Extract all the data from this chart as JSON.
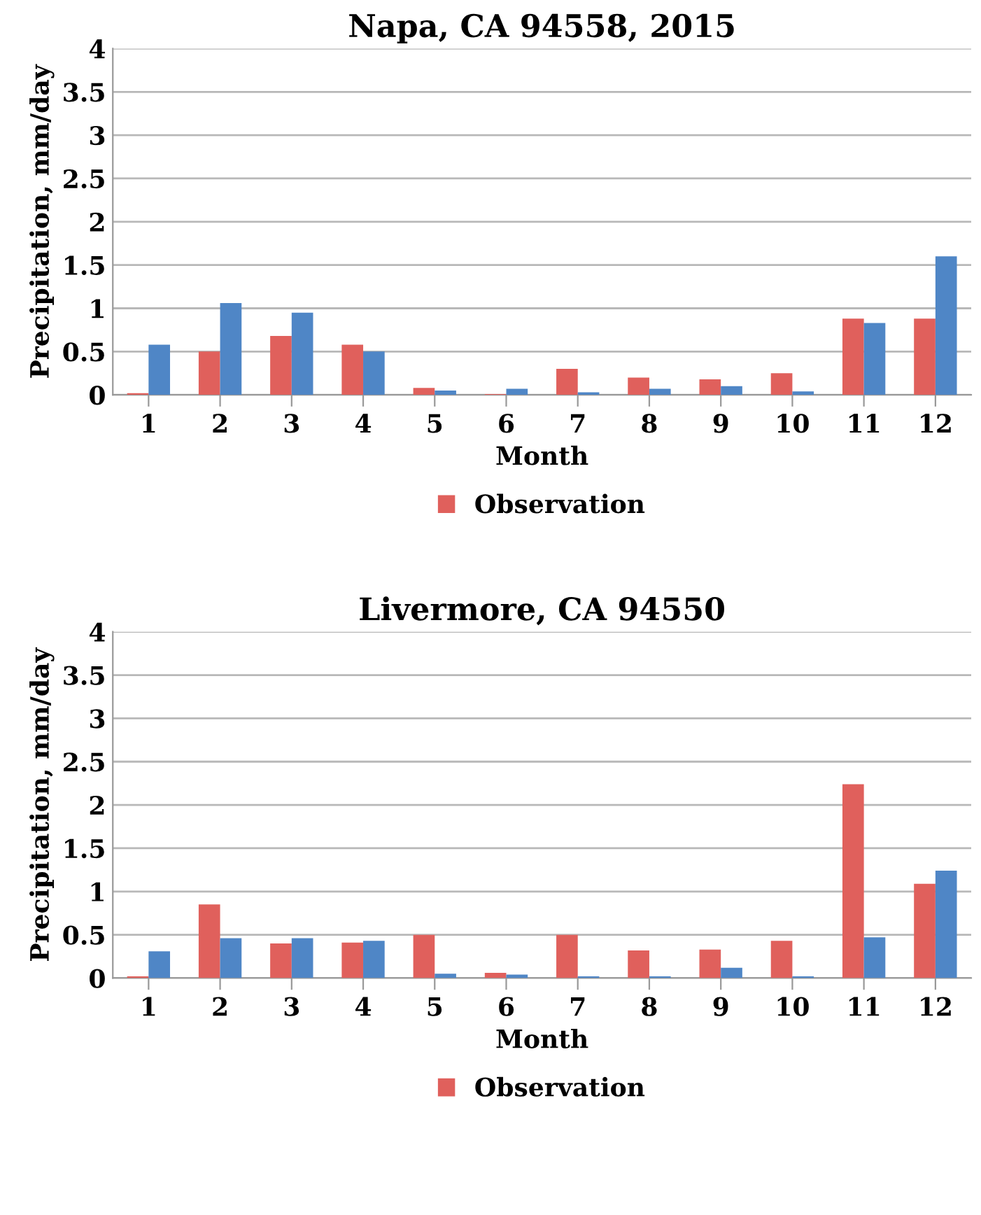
{
  "chart_data": [
    {
      "type": "bar",
      "title": "Napa, CA 94558, 2015",
      "xlabel": "Month",
      "ylabel": "Precipitation, mm/day",
      "categories": [
        "1",
        "2",
        "3",
        "4",
        "5",
        "6",
        "7",
        "8",
        "9",
        "10",
        "11",
        "12"
      ],
      "series": [
        {
          "name": "Observation",
          "color": "#e0605c",
          "values": [
            0.02,
            0.5,
            0.68,
            0.58,
            0.08,
            0.01,
            0.3,
            0.2,
            0.18,
            0.25,
            0.88,
            0.88
          ]
        },
        {
          "color": "#4f86c6",
          "values": [
            0.58,
            1.06,
            0.95,
            0.5,
            0.05,
            0.07,
            0.03,
            0.07,
            0.1,
            0.04,
            0.83,
            1.6
          ]
        }
      ],
      "ylim": [
        0,
        4
      ],
      "yticks": [
        0,
        0.5,
        1,
        1.5,
        2,
        2.5,
        3,
        3.5,
        4
      ],
      "grid": "y",
      "legend": "bottom"
    },
    {
      "type": "bar",
      "title": "Livermore, CA 94550",
      "xlabel": "Month",
      "ylabel": "Precipitation, mm/day",
      "categories": [
        "1",
        "2",
        "3",
        "4",
        "5",
        "6",
        "7",
        "8",
        "9",
        "10",
        "11",
        "12"
      ],
      "series": [
        {
          "name": "Observation",
          "color": "#e0605c",
          "values": [
            0.02,
            0.85,
            0.4,
            0.41,
            0.5,
            0.06,
            0.5,
            0.32,
            0.33,
            0.43,
            2.24,
            1.09
          ]
        },
        {
          "color": "#4f86c6",
          "values": [
            0.31,
            0.46,
            0.46,
            0.43,
            0.05,
            0.04,
            0.02,
            0.02,
            0.12,
            0.02,
            0.47,
            1.24
          ]
        }
      ],
      "ylim": [
        0,
        4
      ],
      "yticks": [
        0,
        0.5,
        1,
        1.5,
        2,
        2.5,
        3,
        3.5,
        4
      ],
      "grid": "y",
      "legend": "bottom"
    }
  ]
}
